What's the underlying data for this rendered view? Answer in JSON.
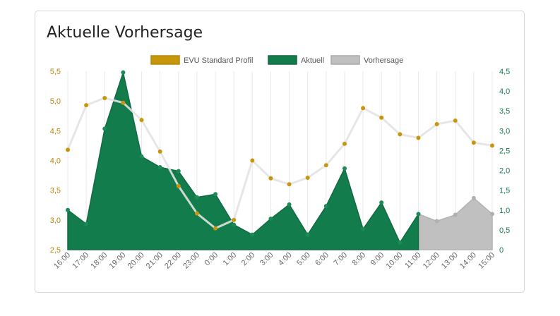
{
  "title": "Aktuelle Vorhersage",
  "colors": {
    "standard": "#c8960a",
    "standard_line": "#e3e3e3",
    "actual": "#137c4c",
    "forecast": "#c0c0c0",
    "grid": "#e9e9e9",
    "left_axis": "#b8860b",
    "right_axis": "#137c4c"
  },
  "chart_data": {
    "type": "area",
    "legend_position": "top",
    "categories": [
      "16:00",
      "17:00",
      "18:00",
      "19:00",
      "20:00",
      "21:00",
      "22:00",
      "23:00",
      "0:00",
      "1:00",
      "2:00",
      "3:00",
      "4:00",
      "5:00",
      "6:00",
      "7:00",
      "8:00",
      "9:00",
      "10:00",
      "11:00",
      "12:00",
      "13:00",
      "14:00",
      "15:00"
    ],
    "left_axis": {
      "min": 2.5,
      "max": 5.5,
      "ticks": [
        "2,5",
        "3,0",
        "3,5",
        "4,0",
        "4,5",
        "5,0",
        "5,5"
      ]
    },
    "right_axis": {
      "min": 0,
      "max": 4.5,
      "ticks": [
        "0",
        "0,5",
        "1,0",
        "1,5",
        "2,0",
        "2,5",
        "3,0",
        "3,5",
        "4,0",
        "4,5"
      ]
    },
    "series": [
      {
        "name": "EVU Standard Profil",
        "type": "line",
        "axis": "left",
        "values": [
          4.18,
          4.93,
          5.05,
          4.97,
          4.68,
          4.15,
          3.57,
          3.11,
          2.86,
          3.0,
          4.0,
          3.7,
          3.6,
          3.71,
          3.92,
          4.28,
          4.88,
          4.72,
          4.44,
          4.38,
          4.61,
          4.67,
          4.3,
          4.25
        ]
      },
      {
        "name": "Aktuell",
        "type": "area",
        "axis": "right",
        "values": [
          1.0,
          0.65,
          3.05,
          4.47,
          2.35,
          2.08,
          1.98,
          1.32,
          1.4,
          0.63,
          0.38,
          0.78,
          1.14,
          0.38,
          1.1,
          2.05,
          0.52,
          1.19,
          0.18,
          0.9,
          null,
          null,
          null,
          null
        ]
      },
      {
        "name": "Vorhersage",
        "type": "area",
        "axis": "right",
        "values": [
          null,
          null,
          null,
          null,
          null,
          null,
          null,
          null,
          null,
          null,
          null,
          null,
          null,
          null,
          null,
          null,
          null,
          null,
          null,
          0.9,
          0.72,
          0.88,
          1.3,
          0.9
        ]
      }
    ]
  }
}
